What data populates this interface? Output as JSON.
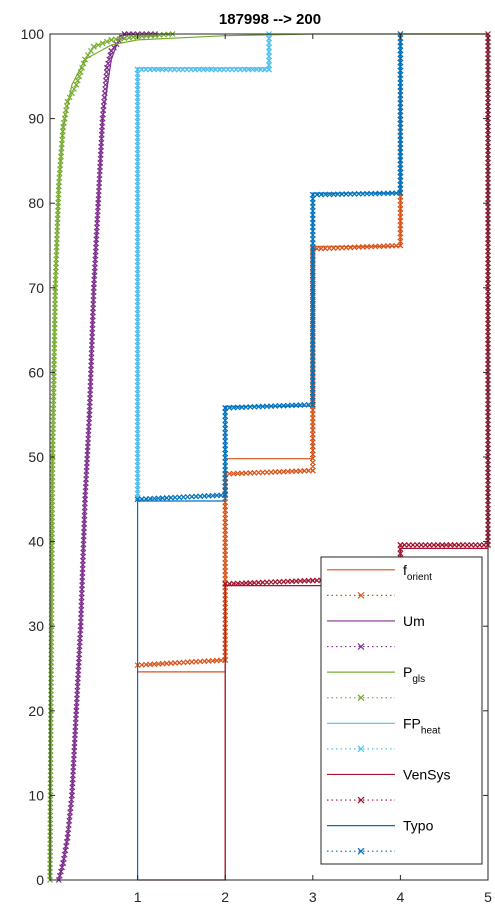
{
  "chart_data": {
    "type": "line",
    "title": "187998 --> 200",
    "xlabel": "",
    "ylabel": "",
    "xlim": [
      0,
      5
    ],
    "ylim": [
      0,
      100
    ],
    "xticks": [
      1,
      2,
      3,
      4,
      5
    ],
    "yticks": [
      0,
      10,
      20,
      30,
      40,
      50,
      60,
      70,
      80,
      90,
      100
    ],
    "grid": false,
    "legend_position": "bottom-right",
    "series": [
      {
        "base": "f",
        "sub": "orient",
        "style": "solid",
        "color": "#D95319",
        "points": [
          [
            2,
            0
          ],
          [
            2,
            24.6
          ],
          [
            1,
            24.6
          ],
          [
            1,
            24.6
          ],
          [
            2,
            24.6
          ],
          [
            2,
            49.8
          ],
          [
            3,
            49.8
          ],
          [
            3,
            74.9
          ],
          [
            4,
            74.9
          ],
          [
            4,
            100
          ],
          [
            5,
            100
          ]
        ]
      },
      {
        "base": "",
        "sub": "",
        "style": "dotted",
        "color": "#D95319",
        "points": [
          [
            1,
            25.4
          ],
          [
            2,
            26
          ],
          [
            2,
            48
          ],
          [
            3,
            48.4
          ],
          [
            3,
            74.6
          ],
          [
            4,
            75
          ],
          [
            4,
            100
          ]
        ]
      },
      {
        "base": "Um",
        "sub": "",
        "style": "solid",
        "color": "#7E2F8E",
        "points": [
          [
            0.1,
            0
          ],
          [
            0.15,
            2
          ],
          [
            0.2,
            5
          ],
          [
            0.25,
            10
          ],
          [
            0.3,
            20
          ],
          [
            0.35,
            30
          ],
          [
            0.4,
            45
          ],
          [
            0.45,
            55
          ],
          [
            0.5,
            70
          ],
          [
            0.55,
            80
          ],
          [
            0.6,
            90
          ],
          [
            0.7,
            97
          ],
          [
            0.8,
            99.8
          ],
          [
            1.0,
            100
          ]
        ]
      },
      {
        "base": "",
        "sub": "",
        "style": "dotted",
        "color": "#7E2F8E",
        "points": [
          [
            0.1,
            0
          ],
          [
            0.15,
            2
          ],
          [
            0.2,
            5
          ],
          [
            0.25,
            10
          ],
          [
            0.3,
            20
          ],
          [
            0.35,
            30
          ],
          [
            0.4,
            45
          ],
          [
            0.45,
            55
          ],
          [
            0.5,
            70
          ],
          [
            0.55,
            80
          ],
          [
            0.6,
            90
          ],
          [
            0.65,
            96
          ],
          [
            0.7,
            98
          ],
          [
            0.85,
            100
          ],
          [
            1.2,
            100
          ]
        ]
      },
      {
        "base": "P",
        "sub": "gls",
        "style": "solid",
        "color": "#77AC30",
        "points": [
          [
            0,
            0
          ],
          [
            0.01,
            20
          ],
          [
            0.03,
            50
          ],
          [
            0.06,
            70
          ],
          [
            0.1,
            82
          ],
          [
            0.15,
            89
          ],
          [
            0.25,
            94
          ],
          [
            0.4,
            97
          ],
          [
            0.7,
            98.7
          ],
          [
            1.0,
            99.3
          ],
          [
            2.0,
            99.8
          ],
          [
            3.0,
            100
          ],
          [
            5,
            100
          ]
        ]
      },
      {
        "base": "",
        "sub": "",
        "style": "dotted",
        "color": "#77AC30",
        "points": [
          [
            0,
            0
          ],
          [
            0.01,
            20
          ],
          [
            0.03,
            50
          ],
          [
            0.06,
            70
          ],
          [
            0.1,
            82
          ],
          [
            0.15,
            89
          ],
          [
            0.2,
            92
          ],
          [
            0.3,
            94
          ],
          [
            0.4,
            97
          ],
          [
            0.5,
            98.5
          ],
          [
            0.7,
            99.3
          ],
          [
            1.0,
            99.7
          ],
          [
            1.4,
            100
          ]
        ]
      },
      {
        "base": "FP",
        "sub": "heat",
        "style": "solid",
        "color": "#4DBEEE",
        "points": [
          [
            1,
            44.8
          ],
          [
            1,
            96
          ],
          [
            2.5,
            96
          ],
          [
            2.5,
            100
          ]
        ]
      },
      {
        "base": "",
        "sub": "",
        "style": "dotted",
        "color": "#4DBEEE",
        "points": [
          [
            1,
            45.2
          ],
          [
            1,
            95.8
          ],
          [
            2.5,
            95.8
          ],
          [
            2.5,
            100
          ]
        ]
      },
      {
        "base": "VenSys",
        "sub": "",
        "style": "solid",
        "color": "#A2142F",
        "points": [
          [
            1,
            0
          ],
          [
            2,
            0
          ],
          [
            2,
            34.8
          ],
          [
            4,
            34.8
          ],
          [
            4,
            39.2
          ],
          [
            5,
            39.2
          ],
          [
            5,
            100
          ]
        ]
      },
      {
        "base": "",
        "sub": "",
        "style": "dotted",
        "color": "#A2142F",
        "points": [
          [
            2,
            35
          ],
          [
            3,
            35.4
          ],
          [
            4,
            35.6
          ],
          [
            4,
            39.6
          ],
          [
            5,
            39.6
          ],
          [
            5,
            100
          ]
        ]
      },
      {
        "base": "Typo",
        "sub": "",
        "style": "solid",
        "color": "#0072BD",
        "points": [
          [
            1,
            0
          ],
          [
            1,
            44.8
          ],
          [
            2,
            44.8
          ],
          [
            2,
            56
          ],
          [
            3,
            56
          ],
          [
            3,
            81.2
          ],
          [
            4,
            81.2
          ],
          [
            4,
            100
          ]
        ]
      },
      {
        "base": "",
        "sub": "",
        "style": "dotted",
        "color": "#0072BD",
        "points": [
          [
            1,
            45
          ],
          [
            2,
            45.5
          ],
          [
            2,
            55.8
          ],
          [
            3,
            56.2
          ],
          [
            3,
            81
          ],
          [
            4,
            81.2
          ],
          [
            4,
            100
          ]
        ]
      }
    ]
  }
}
